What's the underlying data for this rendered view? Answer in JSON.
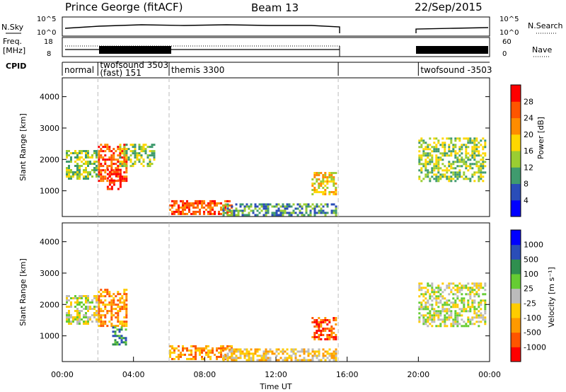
{
  "header": {
    "station": "Prince George (fitACF)",
    "beam": "Beam 13",
    "date": "22/Sep/2015"
  },
  "top_panels": {
    "nsky_label": "N.Sky",
    "nsky_ticks": [
      "10^5",
      "10^0"
    ],
    "nsearch_label": "N.Search",
    "nsearch_ticks": [
      "10^5",
      "10^0"
    ],
    "freq_label_1": "Freq.",
    "freq_label_2": "[MHz]",
    "freq_ticks": [
      "18",
      "8"
    ],
    "nave_label": "Nave",
    "nave_ticks": [
      "60",
      "0"
    ],
    "cpid_label": "CPID"
  },
  "cpid_modes": [
    {
      "label": "normal",
      "start_hour": 0
    },
    {
      "label": "twofsound 3503",
      "label2": "(fast) 151",
      "start_hour": 2
    },
    {
      "label": "themis 3300",
      "start_hour": 6
    },
    {
      "label": "twofsound -3503",
      "start_hour": 20
    }
  ],
  "colors": {
    "gap_line": "#bbbbbb",
    "frame": "#000000"
  },
  "chart_data": [
    {
      "type": "heatmap",
      "ylabel": "Slant Range [km]",
      "xlabel": "",
      "xlim": [
        0,
        24
      ],
      "ylim": [
        180,
        4600
      ],
      "y_ticks": [
        "4000",
        "3000",
        "2000",
        "1000"
      ],
      "colorbar_label": "Power [dB]",
      "colorbar_ticks": [
        "28",
        "24",
        "20",
        "16",
        "12",
        "8",
        "4"
      ],
      "colorbar_colors": [
        "#0000ff",
        "#2a4db8",
        "#3f9b6e",
        "#9acd32",
        "#ffd700",
        "#ff8c00",
        "#ff5500",
        "#ff0000"
      ],
      "data_gap_hours": [
        15.5,
        19.9
      ],
      "echo_regions": [
        {
          "t0": 0.2,
          "t1": 2.0,
          "r0": 1400,
          "r1": 2300,
          "level": 3
        },
        {
          "t0": 2.0,
          "t1": 3.6,
          "r0": 1300,
          "r1": 2500,
          "level": 6
        },
        {
          "t0": 2.5,
          "t1": 3.3,
          "r0": 1050,
          "r1": 1700,
          "level": 7
        },
        {
          "t0": 3.2,
          "t1": 5.2,
          "r0": 1800,
          "r1": 2500,
          "level": 3
        },
        {
          "t0": 6.0,
          "t1": 9.5,
          "r0": 250,
          "r1": 700,
          "level": 6
        },
        {
          "t0": 9.0,
          "t1": 15.4,
          "r0": 220,
          "r1": 600,
          "level": 2
        },
        {
          "t0": 14.0,
          "t1": 15.4,
          "r0": 900,
          "r1": 1600,
          "level": 4
        },
        {
          "t0": 20.0,
          "t1": 23.8,
          "r0": 1300,
          "r1": 2700,
          "level": 3
        }
      ]
    },
    {
      "type": "heatmap",
      "ylabel": "Slant Range [km]",
      "xlabel": "Time UT",
      "xlim": [
        0,
        24
      ],
      "ylim": [
        180,
        4600
      ],
      "x_ticks": [
        "00:00",
        "04:00",
        "08:00",
        "12:00",
        "16:00",
        "20:00",
        "00:00"
      ],
      "y_ticks": [
        "4000",
        "3000",
        "2000",
        "1000"
      ],
      "colorbar_label": "Velocity [m s⁻¹]",
      "colorbar_ticks": [
        "1000",
        "500",
        "100",
        "25",
        "-25",
        "-100",
        "-500",
        "-1000"
      ],
      "colorbar_colors": [
        "#ff0000",
        "#ff5500",
        "#ff9900",
        "#ffcc00",
        "#bbbbbb",
        "#66cc33",
        "#2f8f4f",
        "#2a4db8",
        "#0000ff"
      ],
      "data_gap_hours": [
        15.5,
        19.9
      ],
      "echo_regions": [
        {
          "t0": 0.2,
          "t1": 2.0,
          "r0": 1400,
          "r1": 2300,
          "level": 4
        },
        {
          "t0": 2.0,
          "t1": 3.6,
          "r0": 1300,
          "r1": 2500,
          "level": 2
        },
        {
          "t0": 2.8,
          "t1": 3.6,
          "r0": 700,
          "r1": 1300,
          "level": 6
        },
        {
          "t0": 6.0,
          "t1": 9.5,
          "r0": 250,
          "r1": 700,
          "level": 2
        },
        {
          "t0": 9.0,
          "t1": 15.4,
          "r0": 220,
          "r1": 600,
          "level": 3
        },
        {
          "t0": 14.0,
          "t1": 15.4,
          "r0": 900,
          "r1": 1600,
          "level": 1
        },
        {
          "t0": 20.0,
          "t1": 23.8,
          "r0": 1300,
          "r1": 2700,
          "level": 4
        }
      ]
    }
  ]
}
